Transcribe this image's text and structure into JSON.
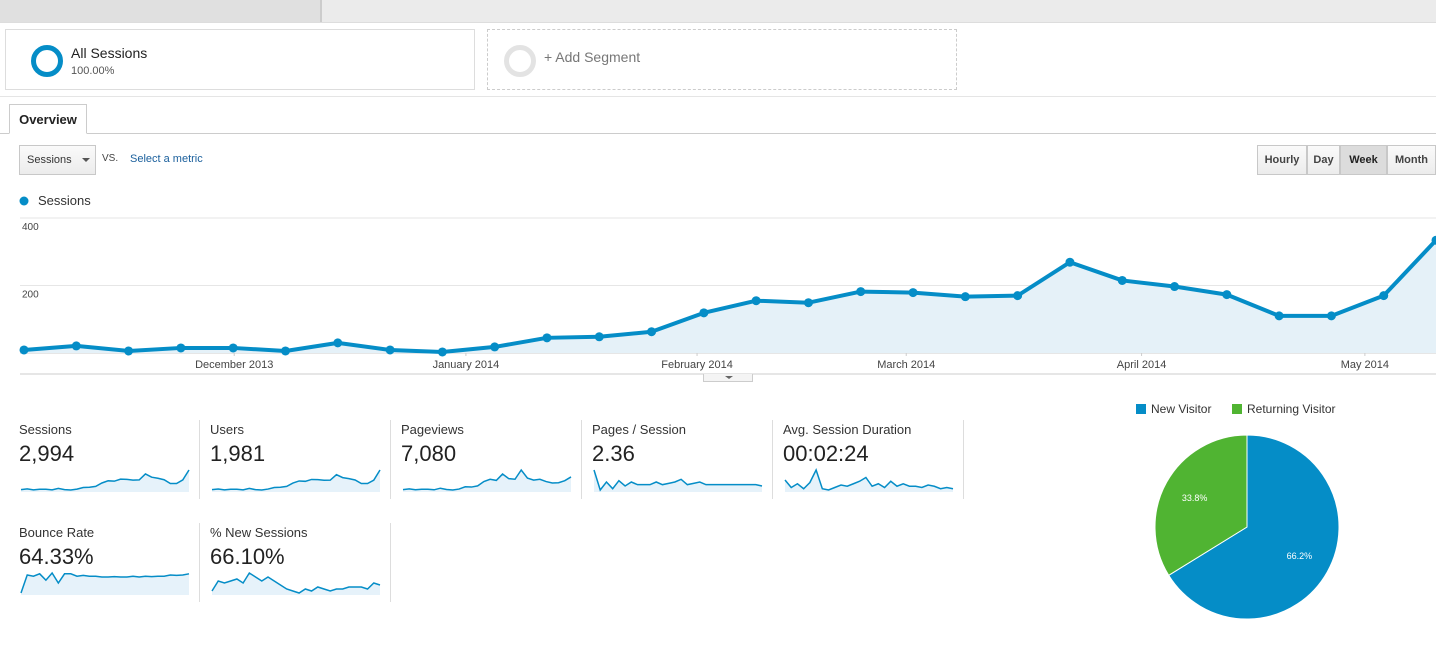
{
  "segments": [
    {
      "name": "All Sessions",
      "percent": "100.00%"
    },
    {
      "name": "+ Add Segment"
    }
  ],
  "tab": "Overview",
  "metric_selector": {
    "selected": "Sessions",
    "vs": "VS.",
    "link": "Select a metric"
  },
  "granularity": {
    "options": [
      "Hourly",
      "Day",
      "Week",
      "Month"
    ],
    "selected": "Week"
  },
  "chart_data": [
    {
      "type": "line",
      "categories": [
        null,
        null,
        null,
        null,
        null,
        null,
        null,
        null,
        null,
        null,
        null,
        null,
        null,
        null,
        null,
        null,
        null,
        null,
        null,
        null,
        null,
        null,
        null,
        null,
        null,
        null,
        null,
        null
      ],
      "series": [
        {
          "name": "Sessions",
          "color": "#058dc7",
          "values": [
            9,
            21,
            6,
            15,
            15,
            6,
            30,
            9,
            3,
            18,
            45,
            48,
            63,
            119,
            155,
            149,
            182,
            179,
            167,
            170,
            269,
            215,
            197,
            173,
            110,
            110,
            170,
            334
          ]
        }
      ],
      "ylim": [
        0,
        400
      ],
      "yticks": [
        200,
        400
      ],
      "xticks": [
        {
          "value": 4.02,
          "label": "December 2013"
        },
        {
          "value": 8.45,
          "label": "January 2014"
        },
        {
          "value": 12.87,
          "label": "February 2014"
        },
        {
          "value": 16.87,
          "label": "March 2014"
        },
        {
          "value": 21.37,
          "label": "April 2014"
        },
        {
          "value": 25.64,
          "label": "May 2014"
        }
      ],
      "grid": true
    },
    {
      "type": "pie",
      "categories": [
        "New Visitor",
        "Returning Visitor"
      ],
      "values": [
        66.2,
        33.8
      ],
      "value_labels": [
        "66.2%",
        "33.8%"
      ],
      "colors": [
        "#058dc7",
        "#50b432"
      ]
    }
  ],
  "metrics": [
    {
      "label": "Sessions",
      "value": "2,994",
      "spark": [
        9,
        21,
        6,
        15,
        15,
        6,
        30,
        9,
        3,
        18,
        45,
        48,
        63,
        119,
        155,
        149,
        182,
        179,
        167,
        170,
        269,
        215,
        197,
        173,
        110,
        110,
        170,
        334
      ]
    },
    {
      "label": "Users",
      "value": "1,981",
      "spark": [
        7,
        15,
        5,
        12,
        12,
        5,
        22,
        7,
        3,
        14,
        33,
        35,
        46,
        85,
        110,
        106,
        128,
        126,
        118,
        120,
        185,
        150,
        138,
        122,
        80,
        80,
        120,
        240
      ]
    },
    {
      "label": "Pageviews",
      "value": "7,080",
      "spark": [
        20,
        45,
        15,
        35,
        35,
        15,
        70,
        25,
        8,
        40,
        120,
        110,
        150,
        300,
        380,
        340,
        560,
        400,
        380,
        700,
        420,
        350,
        380,
        300,
        250,
        260,
        330,
        460
      ]
    },
    {
      "label": "Pages / Session",
      "value": "2.36",
      "spark": [
        3.5,
        2.0,
        2.6,
        2.1,
        2.7,
        2.3,
        2.6,
        2.4,
        2.4,
        2.4,
        2.6,
        2.4,
        2.5,
        2.6,
        2.8,
        2.4,
        2.5,
        2.6,
        2.4,
        2.4,
        2.4,
        2.4,
        2.4,
        2.4,
        2.4,
        2.4,
        2.4,
        2.3
      ]
    },
    {
      "label": "Avg. Session Duration",
      "value": "00:02:24",
      "spark": [
        180,
        120,
        150,
        110,
        160,
        260,
        110,
        100,
        120,
        140,
        130,
        150,
        170,
        200,
        130,
        150,
        120,
        170,
        130,
        150,
        130,
        130,
        120,
        140,
        130,
        110,
        120,
        110
      ]
    },
    {
      "label": "Bounce Rate",
      "value": "64.33%",
      "spark": [
        30,
        75,
        72,
        78,
        62,
        80,
        55,
        78,
        78,
        72,
        74,
        72,
        72,
        70,
        70,
        71,
        70,
        70,
        72,
        70,
        72,
        71,
        72,
        72,
        75,
        74,
        75,
        78
      ]
    },
    {
      "label": "% New Sessions",
      "value": "66.10%",
      "spark": [
        60,
        70,
        68,
        70,
        72,
        68,
        78,
        74,
        70,
        74,
        70,
        66,
        62,
        60,
        58,
        62,
        60,
        64,
        62,
        60,
        62,
        62,
        64,
        64,
        64,
        62,
        68,
        66
      ]
    }
  ]
}
